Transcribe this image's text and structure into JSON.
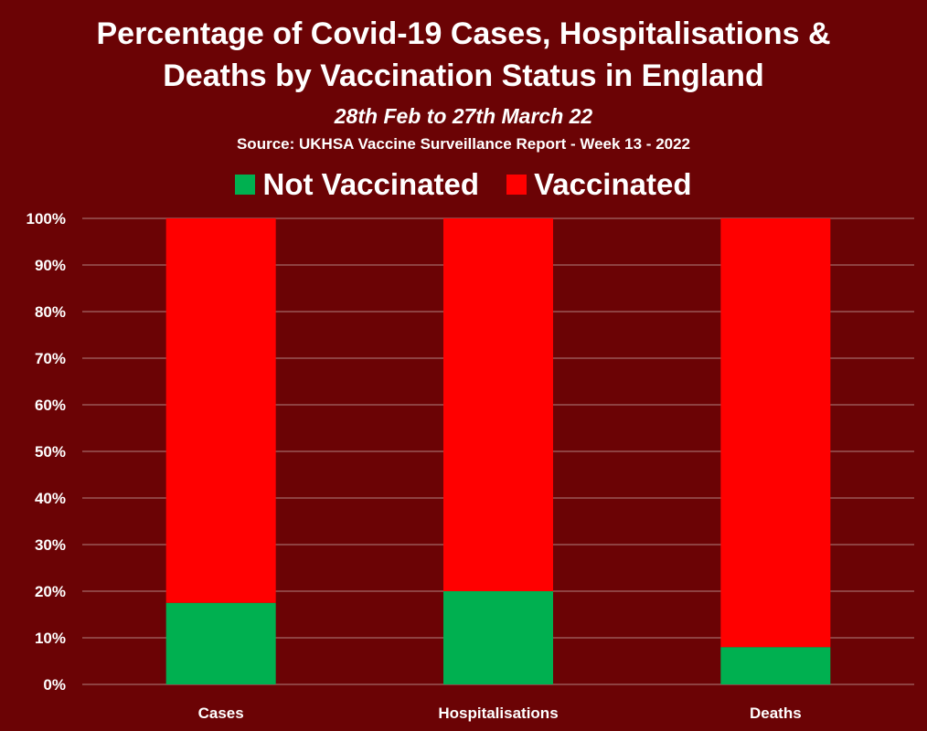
{
  "title_lines": [
    "Percentage of Covid-19 Cases, Hospitalisations &",
    "Deaths by Vaccination Status in England"
  ],
  "subtitle": "28th Feb to 27th March 22",
  "source": "Source: UKHSA Vaccine Surveillance Report - Week 13 - 2022",
  "colors": {
    "background": "#6b0305",
    "not_vaccinated": "#00b050",
    "vaccinated": "#ff0000",
    "text": "#ffffff",
    "gridline": "#b08080"
  },
  "chart_data": {
    "type": "bar",
    "stacked": true,
    "categories": [
      "Cases",
      "Hospitalisations",
      "Deaths"
    ],
    "series": [
      {
        "name": "Not Vaccinated",
        "values": [
          17.5,
          20,
          8
        ]
      },
      {
        "name": "Vaccinated",
        "values": [
          82.5,
          80,
          92
        ]
      }
    ],
    "y_ticks": [
      "0%",
      "10%",
      "20%",
      "30%",
      "40%",
      "50%",
      "60%",
      "70%",
      "80%",
      "90%",
      "100%"
    ],
    "ylim": [
      0,
      100
    ],
    "grid": true,
    "legend": "top-center"
  }
}
